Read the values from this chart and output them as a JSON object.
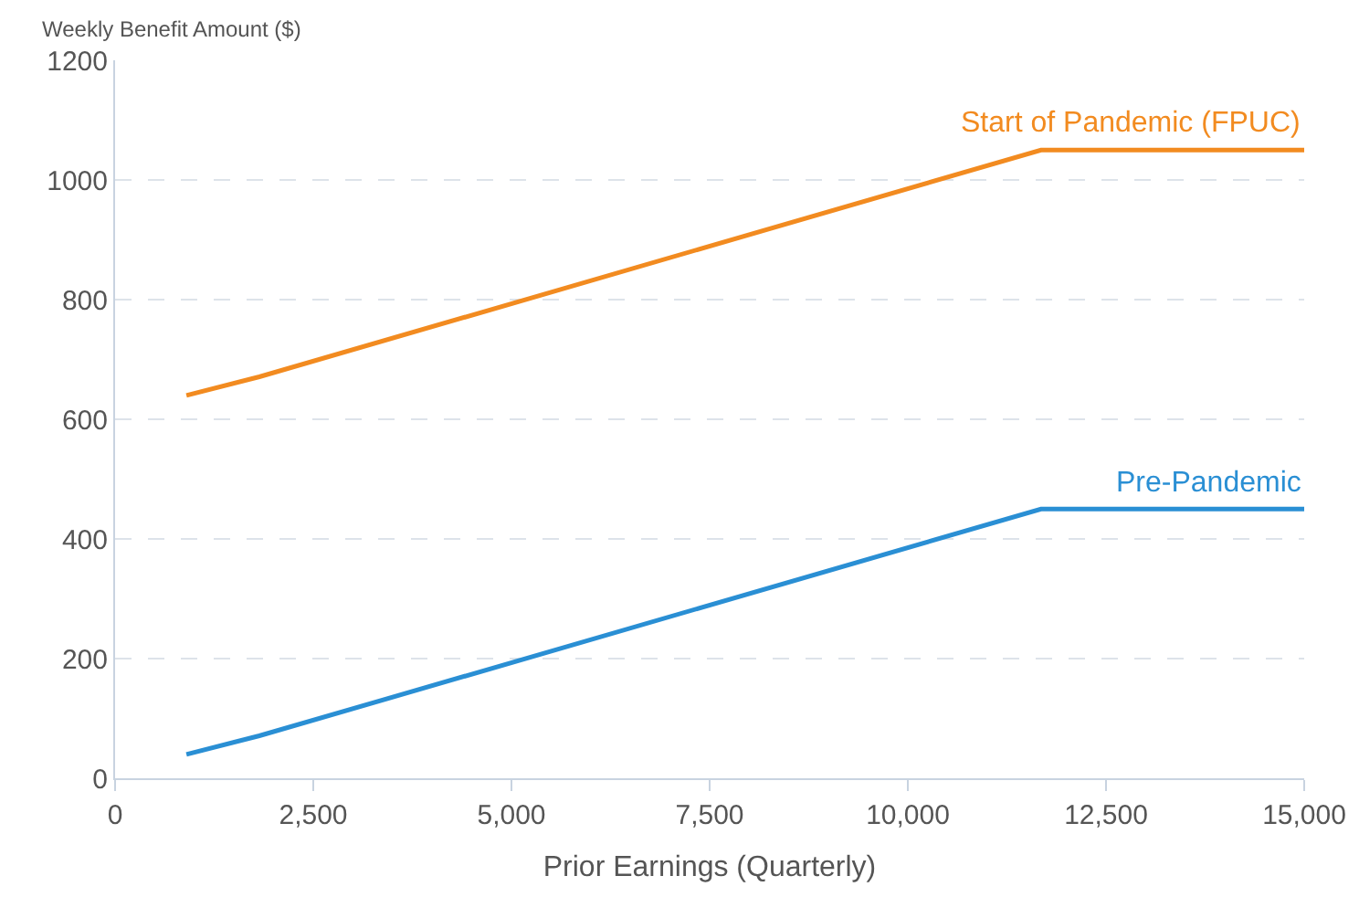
{
  "chart_data": {
    "type": "line",
    "ylabel": "Weekly Benefit Amount ($)",
    "xlabel": "Prior Earnings (Quarterly)",
    "x": [
      900,
      1820,
      11680,
      15000
    ],
    "series": [
      {
        "name": "Start of Pandemic (FPUC)",
        "color": "#f28b20",
        "values": [
          640,
          671,
          1050,
          1050
        ]
      },
      {
        "name": "Pre-Pandemic",
        "color": "#2a8fd4",
        "values": [
          40,
          71,
          450,
          450
        ]
      }
    ],
    "xlim": [
      0,
      15000
    ],
    "xticks": [
      0,
      {
        "value": 2500,
        "label": "2,500"
      },
      {
        "value": 5000,
        "label": "5,000"
      },
      {
        "value": 7500,
        "label": "7,500"
      },
      {
        "value": 10000,
        "label": "10,000"
      },
      {
        "value": 12500,
        "label": "12,500"
      },
      {
        "value": 15000,
        "label": "15,000"
      }
    ],
    "ylim": [
      0,
      1200
    ],
    "yticks": [
      0,
      200,
      400,
      600,
      800,
      1000,
      1200
    ],
    "grid": "y",
    "legend": false,
    "marker": "none",
    "line_style": "solid"
  }
}
